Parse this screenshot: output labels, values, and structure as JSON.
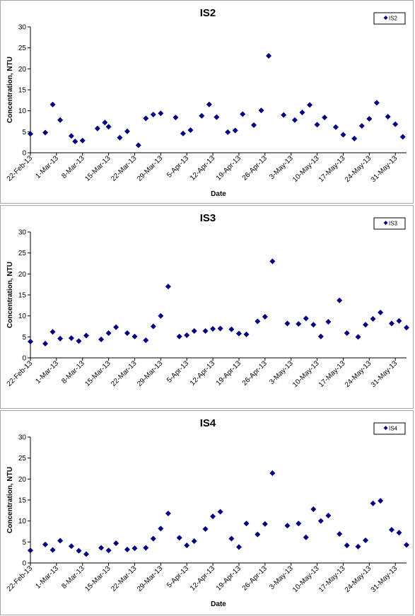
{
  "chart_data": [
    {
      "type": "scatter",
      "title": "IS2",
      "xlabel": "Date",
      "ylabel": "Concentration, NTU",
      "ylim": [
        0,
        30
      ],
      "yticks": [
        0,
        5,
        10,
        15,
        20,
        25,
        30
      ],
      "xlim": [
        "2013-02-22",
        "2013-06-03"
      ],
      "xticks": [
        "22-Feb-13",
        "1-Mar-13",
        "8-Mar-13",
        "15-Mar-13",
        "22-Mar-13",
        "29-Mar-13",
        "5-Apr-13",
        "12-Apr-13",
        "19-Apr-13",
        "26-Apr-13",
        "3-May-13",
        "10-May-13",
        "17-May-13",
        "24-May-13",
        "31-May-13"
      ],
      "grid": false,
      "legend": "top-right",
      "color": "#000080",
      "series": [
        {
          "name": "IS2",
          "points": [
            [
              "2013-02-22",
              4.5
            ],
            [
              "2013-02-26",
              4.8
            ],
            [
              "2013-02-28",
              11.5
            ],
            [
              "2013-03-02",
              7.8
            ],
            [
              "2013-03-05",
              4.0
            ],
            [
              "2013-03-06",
              2.7
            ],
            [
              "2013-03-08",
              2.9
            ],
            [
              "2013-03-12",
              5.8
            ],
            [
              "2013-03-14",
              7.2
            ],
            [
              "2013-03-15",
              6.2
            ],
            [
              "2013-03-18",
              3.6
            ],
            [
              "2013-03-20",
              5.1
            ],
            [
              "2013-03-23",
              1.8
            ],
            [
              "2013-03-25",
              8.2
            ],
            [
              "2013-03-27",
              9.1
            ],
            [
              "2013-03-29",
              9.4
            ],
            [
              "2013-04-02",
              8.4
            ],
            [
              "2013-04-04",
              4.6
            ],
            [
              "2013-04-06",
              5.4
            ],
            [
              "2013-04-09",
              8.8
            ],
            [
              "2013-04-11",
              11.5
            ],
            [
              "2013-04-13",
              8.5
            ],
            [
              "2013-04-16",
              4.9
            ],
            [
              "2013-04-18",
              5.3
            ],
            [
              "2013-04-20",
              9.2
            ],
            [
              "2013-04-23",
              6.6
            ],
            [
              "2013-04-25",
              10.1
            ],
            [
              "2013-04-27",
              23.1
            ],
            [
              "2013-05-01",
              9.0
            ],
            [
              "2013-05-04",
              7.8
            ],
            [
              "2013-05-06",
              9.6
            ],
            [
              "2013-05-08",
              11.4
            ],
            [
              "2013-05-10",
              6.7
            ],
            [
              "2013-05-12",
              8.4
            ],
            [
              "2013-05-15",
              6.1
            ],
            [
              "2013-05-17",
              4.3
            ],
            [
              "2013-05-20",
              3.4
            ],
            [
              "2013-05-22",
              6.4
            ],
            [
              "2013-05-24",
              8.1
            ],
            [
              "2013-05-26",
              11.9
            ],
            [
              "2013-05-29",
              8.6
            ],
            [
              "2013-05-31",
              6.8
            ],
            [
              "2013-06-02",
              3.8
            ]
          ]
        }
      ]
    },
    {
      "type": "scatter",
      "title": "IS3",
      "xlabel": "",
      "ylabel": "Concentration, NTU",
      "ylim": [
        0,
        30
      ],
      "yticks": [
        0,
        5,
        10,
        15,
        20,
        25,
        30
      ],
      "xlim": [
        "2013-02-22",
        "2013-06-03"
      ],
      "xticks": [
        "22-Feb-13",
        "1-Mar-13",
        "8-Mar-13",
        "15-Mar-13",
        "22-Mar-13",
        "29-Mar-13",
        "5-Apr-13",
        "12-Apr-13",
        "19-Apr-13",
        "26-Apr-13",
        "3-May-13",
        "10-May-13",
        "17-May-13",
        "24-May-13",
        "31-May-13"
      ],
      "grid": false,
      "legend": "top-right",
      "color": "#000080",
      "series": [
        {
          "name": "IS3",
          "points": [
            [
              "2013-02-22",
              3.9
            ],
            [
              "2013-02-26",
              3.4
            ],
            [
              "2013-02-28",
              6.2
            ],
            [
              "2013-03-02",
              4.6
            ],
            [
              "2013-03-05",
              4.7
            ],
            [
              "2013-03-07",
              4.0
            ],
            [
              "2013-03-09",
              5.3
            ],
            [
              "2013-03-13",
              4.4
            ],
            [
              "2013-03-15",
              5.9
            ],
            [
              "2013-03-17",
              7.3
            ],
            [
              "2013-03-20",
              5.9
            ],
            [
              "2013-03-22",
              5.1
            ],
            [
              "2013-03-25",
              4.2
            ],
            [
              "2013-03-27",
              7.5
            ],
            [
              "2013-03-29",
              10.0
            ],
            [
              "2013-03-31",
              17.0
            ],
            [
              "2013-04-03",
              5.1
            ],
            [
              "2013-04-05",
              5.4
            ],
            [
              "2013-04-07",
              6.4
            ],
            [
              "2013-04-10",
              6.4
            ],
            [
              "2013-04-12",
              6.9
            ],
            [
              "2013-04-14",
              7.0
            ],
            [
              "2013-04-17",
              6.8
            ],
            [
              "2013-04-19",
              5.8
            ],
            [
              "2013-04-21",
              5.6
            ],
            [
              "2013-04-24",
              8.7
            ],
            [
              "2013-04-26",
              9.8
            ],
            [
              "2013-04-28",
              23.0
            ],
            [
              "2013-05-02",
              8.2
            ],
            [
              "2013-05-05",
              8.1
            ],
            [
              "2013-05-07",
              9.4
            ],
            [
              "2013-05-09",
              7.9
            ],
            [
              "2013-05-11",
              5.1
            ],
            [
              "2013-05-13",
              8.6
            ],
            [
              "2013-05-16",
              13.7
            ],
            [
              "2013-05-18",
              5.9
            ],
            [
              "2013-05-21",
              5.0
            ],
            [
              "2013-05-23",
              7.9
            ],
            [
              "2013-05-25",
              9.3
            ],
            [
              "2013-05-27",
              10.8
            ],
            [
              "2013-05-30",
              8.2
            ],
            [
              "2013-06-01",
              8.8
            ],
            [
              "2013-06-03",
              7.2
            ]
          ]
        }
      ]
    },
    {
      "type": "scatter",
      "title": "IS4",
      "xlabel": "Date",
      "ylabel": "Concentration, NTU",
      "ylim": [
        0,
        30
      ],
      "yticks": [
        0,
        5,
        10,
        15,
        20,
        25,
        30
      ],
      "xlim": [
        "2013-02-22",
        "2013-06-03"
      ],
      "xticks": [
        "22-Feb-13",
        "1-Mar-13",
        "8-Mar-13",
        "15-Mar-13",
        "22-Mar-13",
        "29-Mar-13",
        "5-Apr-13",
        "12-Apr-13",
        "19-Apr-13",
        "26-Apr-13",
        "3-May-13",
        "10-May-13",
        "17-May-13",
        "24-May-13",
        "31-May-13"
      ],
      "grid": false,
      "legend": "top-right",
      "color": "#000080",
      "series": [
        {
          "name": "IS4",
          "points": [
            [
              "2013-02-22",
              3.0
            ],
            [
              "2013-02-26",
              4.4
            ],
            [
              "2013-02-28",
              3.1
            ],
            [
              "2013-03-02",
              5.3
            ],
            [
              "2013-03-05",
              4.0
            ],
            [
              "2013-03-07",
              2.9
            ],
            [
              "2013-03-09",
              2.1
            ],
            [
              "2013-03-13",
              3.6
            ],
            [
              "2013-03-15",
              3.0
            ],
            [
              "2013-03-17",
              4.7
            ],
            [
              "2013-03-20",
              3.2
            ],
            [
              "2013-03-22",
              3.5
            ],
            [
              "2013-03-25",
              3.6
            ],
            [
              "2013-03-27",
              5.8
            ],
            [
              "2013-03-29",
              8.2
            ],
            [
              "2013-03-31",
              11.8
            ],
            [
              "2013-04-03",
              6.0
            ],
            [
              "2013-04-05",
              4.2
            ],
            [
              "2013-04-07",
              5.2
            ],
            [
              "2013-04-10",
              8.1
            ],
            [
              "2013-04-12",
              11.1
            ],
            [
              "2013-04-14",
              12.2
            ],
            [
              "2013-04-17",
              5.8
            ],
            [
              "2013-04-19",
              3.8
            ],
            [
              "2013-04-21",
              9.4
            ],
            [
              "2013-04-24",
              6.8
            ],
            [
              "2013-04-26",
              9.3
            ],
            [
              "2013-04-28",
              21.4
            ],
            [
              "2013-05-02",
              8.9
            ],
            [
              "2013-05-05",
              9.4
            ],
            [
              "2013-05-07",
              6.1
            ],
            [
              "2013-05-09",
              12.8
            ],
            [
              "2013-05-11",
              10.0
            ],
            [
              "2013-05-13",
              11.3
            ],
            [
              "2013-05-16",
              6.9
            ],
            [
              "2013-05-18",
              4.2
            ],
            [
              "2013-05-21",
              3.9
            ],
            [
              "2013-05-23",
              5.4
            ],
            [
              "2013-05-25",
              14.2
            ],
            [
              "2013-05-27",
              14.8
            ],
            [
              "2013-05-30",
              7.9
            ],
            [
              "2013-06-01",
              7.2
            ],
            [
              "2013-06-03",
              4.3
            ]
          ]
        }
      ]
    }
  ]
}
